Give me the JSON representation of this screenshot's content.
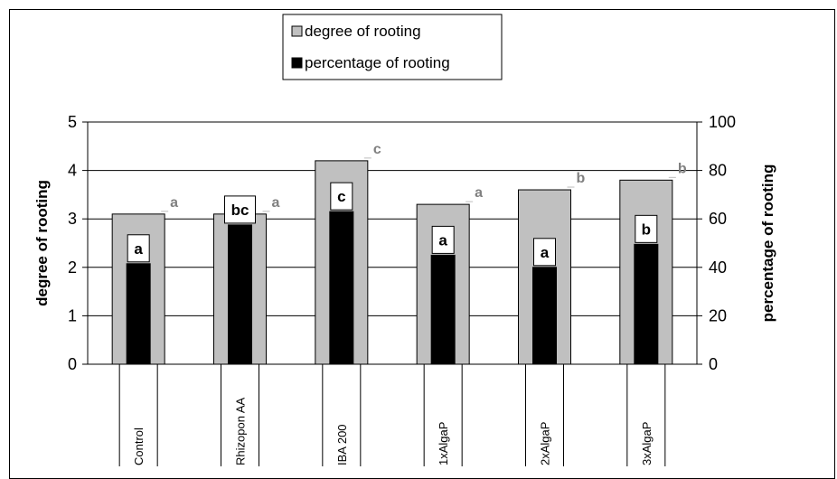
{
  "chart_data": {
    "type": "bar",
    "categories": [
      "Control",
      "Rhizopon AA",
      "IBA 200",
      "1xAlgaP",
      "2xAlgaP",
      "3xAlgaP"
    ],
    "series": [
      {
        "name": "degree of rooting",
        "axis": "left",
        "color": "#c0c0c0",
        "values": [
          3.1,
          3.1,
          4.2,
          3.3,
          3.6,
          3.8
        ],
        "significance": [
          "a",
          "a",
          "c",
          "a",
          "b",
          "b"
        ]
      },
      {
        "name": "percentage of rooting",
        "axis": "right",
        "color": "#000000",
        "values": [
          41.5,
          57.5,
          63,
          45,
          40,
          49.5
        ],
        "significance": [
          "a",
          "bc",
          "c",
          "a",
          "a",
          "b"
        ]
      }
    ],
    "ylabel": "degree of rooting",
    "y2label": "percentage of rooting",
    "ylim": [
      0,
      5
    ],
    "y2lim": [
      0,
      100
    ],
    "yticks": [
      0,
      1,
      2,
      3,
      4,
      5
    ],
    "y2ticks": [
      0,
      20,
      40,
      60,
      80,
      100
    ],
    "grid": true,
    "legend_position": "top-center"
  }
}
